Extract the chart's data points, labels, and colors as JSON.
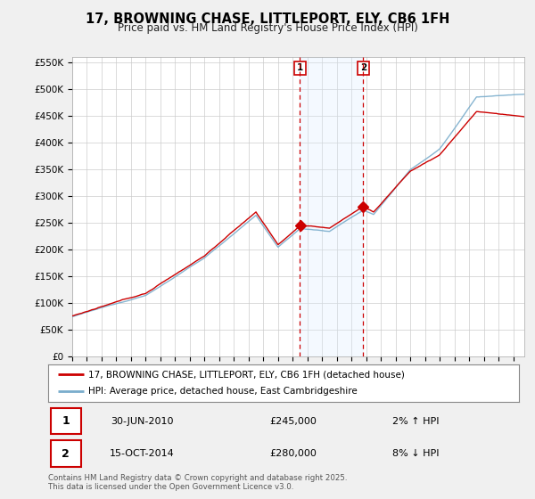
{
  "title": "17, BROWNING CHASE, LITTLEPORT, ELY, CB6 1FH",
  "subtitle": "Price paid vs. HM Land Registry's House Price Index (HPI)",
  "ylim": [
    0,
    560000
  ],
  "yticks": [
    0,
    50000,
    100000,
    150000,
    200000,
    250000,
    300000,
    350000,
    400000,
    450000,
    500000,
    550000
  ],
  "ytick_labels": [
    "£0",
    "£50K",
    "£100K",
    "£150K",
    "£200K",
    "£250K",
    "£300K",
    "£350K",
    "£400K",
    "£450K",
    "£500K",
    "£550K"
  ],
  "xlim_start": 1995.0,
  "xlim_end": 2025.75,
  "line_color_red": "#cc0000",
  "line_color_blue": "#7aadcc",
  "vline1_x": 2010.49,
  "vline2_x": 2014.79,
  "shade_color": "#ddeeff",
  "purchase1_price_val": 245000,
  "purchase2_price_val": 280000,
  "purchase1_date": "30-JUN-2010",
  "purchase1_price": "£245,000",
  "purchase1_hpi": "2% ↑ HPI",
  "purchase2_date": "15-OCT-2014",
  "purchase2_price": "£280,000",
  "purchase2_hpi": "8% ↓ HPI",
  "legend_label_red": "17, BROWNING CHASE, LITTLEPORT, ELY, CB6 1FH (detached house)",
  "legend_label_blue": "HPI: Average price, detached house, East Cambridgeshire",
  "footer_text": "Contains HM Land Registry data © Crown copyright and database right 2025.\nThis data is licensed under the Open Government Licence v3.0.",
  "background_color": "#f0f0f0",
  "plot_bg_color": "#ffffff",
  "title_fontsize": 10.5,
  "subtitle_fontsize": 8.5
}
